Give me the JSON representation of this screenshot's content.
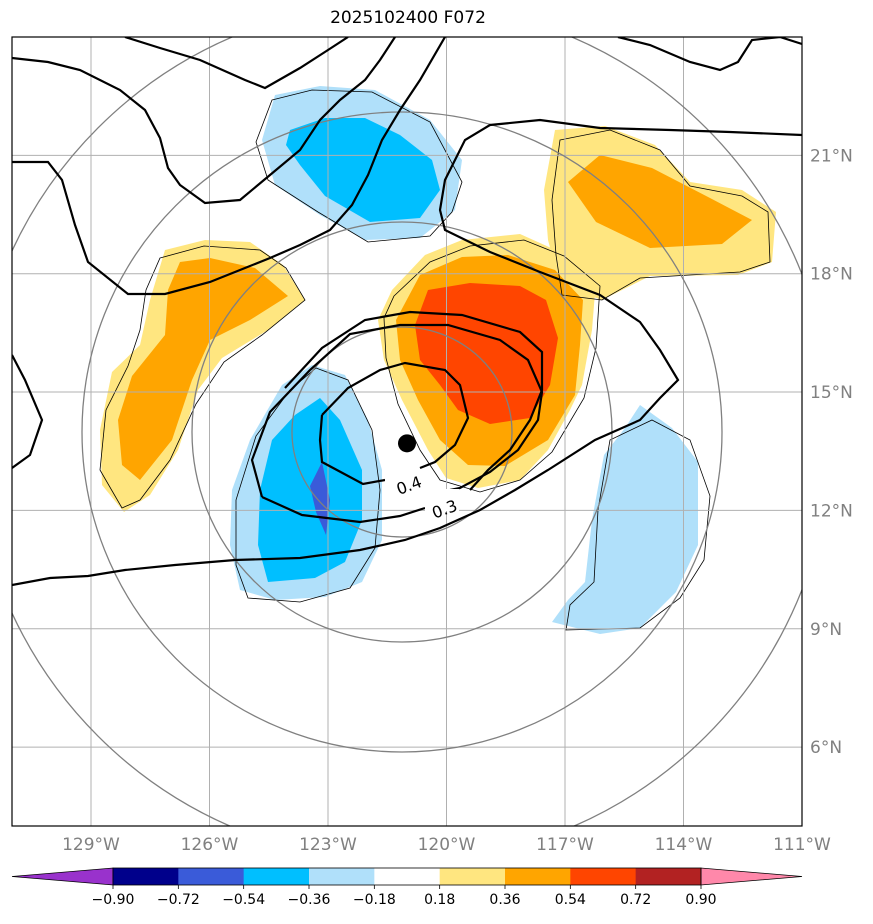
{
  "chart_data": {
    "type": "map-contour",
    "title": "2025102400 F072",
    "lon_ticks": [
      "129°W",
      "126°W",
      "123°W",
      "120°W",
      "117°W",
      "114°W",
      "111°W"
    ],
    "lat_ticks": [
      "21°N",
      "18°N",
      "15°N",
      "12°N",
      "9°N",
      "6°N"
    ],
    "lon_range": [
      -131,
      -111
    ],
    "lat_range": [
      4,
      24
    ],
    "center_marker": {
      "lon": -121,
      "lat": 13.7
    },
    "colorbar": {
      "levels": [
        -0.9,
        -0.72,
        -0.54,
        -0.36,
        -0.18,
        0.18,
        0.36,
        0.54,
        0.72,
        0.9
      ],
      "tick_labels": [
        "−0.90",
        "−0.72",
        "−0.54",
        "−0.36",
        "−0.18",
        "0.18",
        "0.36",
        "0.54",
        "0.72",
        "0.90"
      ],
      "colors": [
        "#9932cc",
        "#00008b",
        "#3a5bd9",
        "#00bfff",
        "#b0e0fa",
        "#ffffff",
        "#ffe680",
        "#ffa500",
        "#ff4500",
        "#b22222",
        "#ff88aa"
      ],
      "extend": "both"
    },
    "contour_labels": [
      {
        "text": "0.4",
        "lon": -120.9,
        "lat": 12.5
      },
      {
        "text": "0.3",
        "lon": -120.0,
        "lat": 11.9
      }
    ],
    "shaded_regions": [
      {
        "name": "negative-north",
        "max_level": -0.36,
        "center": [
          -121.5,
          20.5
        ]
      },
      {
        "name": "negative-southwest",
        "min_level": -0.72,
        "center": [
          -123.4,
          11.6
        ]
      },
      {
        "name": "negative-southeast",
        "level": -0.18,
        "center": [
          -115.4,
          11.0
        ]
      },
      {
        "name": "positive-center",
        "max_level": 0.54,
        "center": [
          -119.0,
          15.8
        ]
      },
      {
        "name": "positive-northeast",
        "max_level": 0.36,
        "center": [
          -115.0,
          19.5
        ]
      },
      {
        "name": "positive-west",
        "max_level": 0.36,
        "center": [
          -127.0,
          15.5
        ]
      }
    ]
  }
}
